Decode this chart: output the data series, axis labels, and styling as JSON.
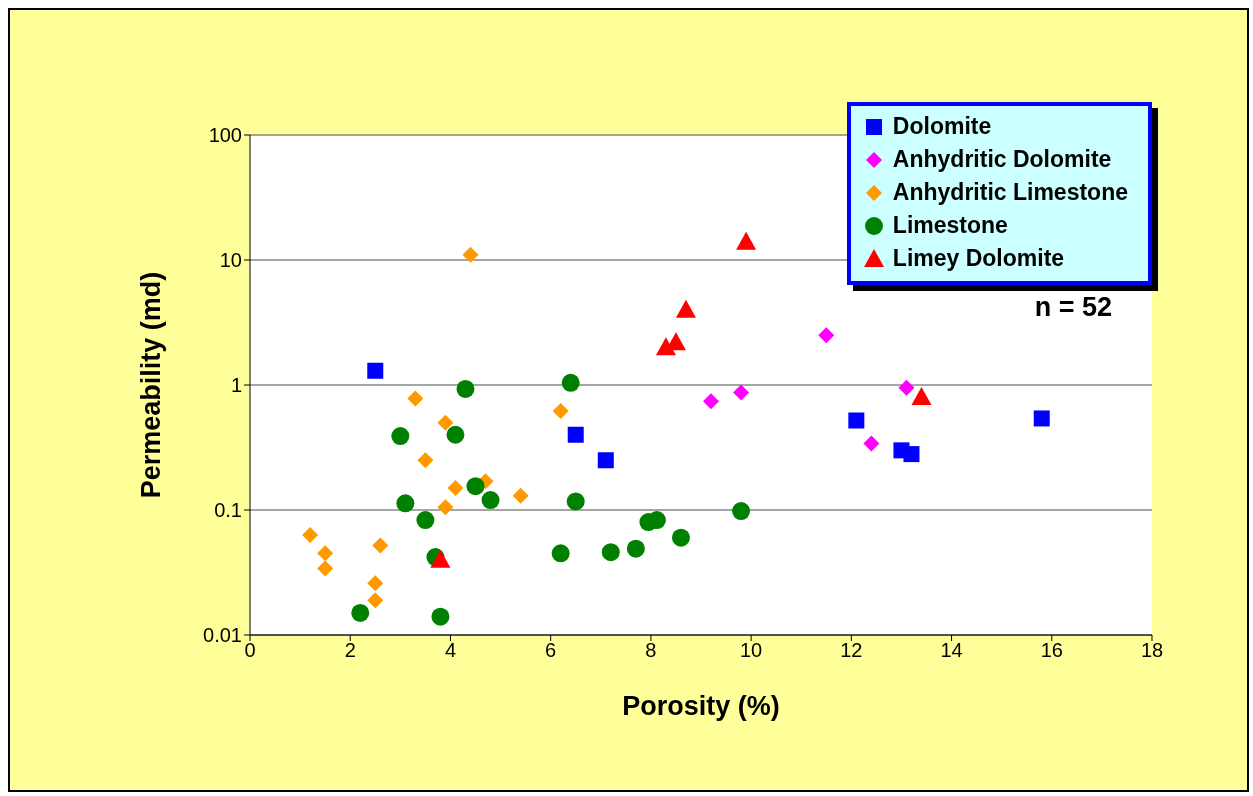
{
  "chart_data": {
    "type": "scatter",
    "xlabel": "Porosity (%)",
    "ylabel": "Permeability (md)",
    "log": "y",
    "xlim": [
      0,
      18
    ],
    "xticks": [
      0,
      2,
      4,
      6,
      8,
      10,
      12,
      14,
      16,
      18
    ],
    "ylim": [
      0.01,
      100
    ],
    "yticks": [
      0.01,
      0.1,
      1,
      10,
      100
    ],
    "grid": "y",
    "legend": "top right",
    "annotations": [
      "n = 52"
    ],
    "series": [
      {
        "name": "Dolomite",
        "color": "#0000ff",
        "marker": "square",
        "x": [
          2.5,
          6.5,
          7.1,
          12.1,
          13.0,
          13.2,
          15.8
        ],
        "values": [
          1.3,
          0.4,
          0.25,
          0.52,
          0.3,
          0.28,
          0.54
        ]
      },
      {
        "name": "Anhydritic Dolomite",
        "color": "#ff00ff",
        "marker": "diamond",
        "x": [
          9.2,
          9.8,
          11.5,
          12.4,
          13.1
        ],
        "values": [
          0.74,
          0.87,
          2.5,
          0.34,
          0.95
        ]
      },
      {
        "name": "Anhydritic Limestone",
        "color": "#ff9900",
        "marker": "diamond",
        "x": [
          4.4,
          3.3,
          3.9,
          3.5,
          4.7,
          4.1,
          5.4,
          3.9,
          6.2,
          1.2,
          1.5,
          1.5,
          2.6,
          2.5,
          2.5
        ],
        "values": [
          11,
          0.78,
          0.5,
          0.25,
          0.17,
          0.15,
          0.13,
          0.105,
          0.62,
          0.063,
          0.045,
          0.034,
          0.052,
          0.026,
          0.019
        ]
      },
      {
        "name": "Limestone",
        "color": "#008000",
        "marker": "circle",
        "x": [
          4.3,
          6.4,
          3.0,
          4.1,
          4.5,
          4.8,
          3.1,
          3.5,
          6.5,
          3.7,
          2.2,
          3.8,
          6.2,
          7.2,
          7.7,
          7.95,
          8.12,
          8.6,
          9.8
        ],
        "values": [
          0.93,
          1.04,
          0.39,
          0.4,
          0.155,
          0.12,
          0.113,
          0.083,
          0.117,
          0.042,
          0.015,
          0.014,
          0.045,
          0.046,
          0.049,
          0.08,
          0.083,
          0.06,
          0.098
        ]
      },
      {
        "name": "Limey Dolomite",
        "color": "#ff0000",
        "marker": "triangle",
        "x": [
          9.9,
          8.7,
          8.3,
          8.5,
          13.4,
          3.8
        ],
        "values": [
          14,
          4,
          2.0,
          2.2,
          0.8,
          0.04
        ]
      }
    ]
  }
}
